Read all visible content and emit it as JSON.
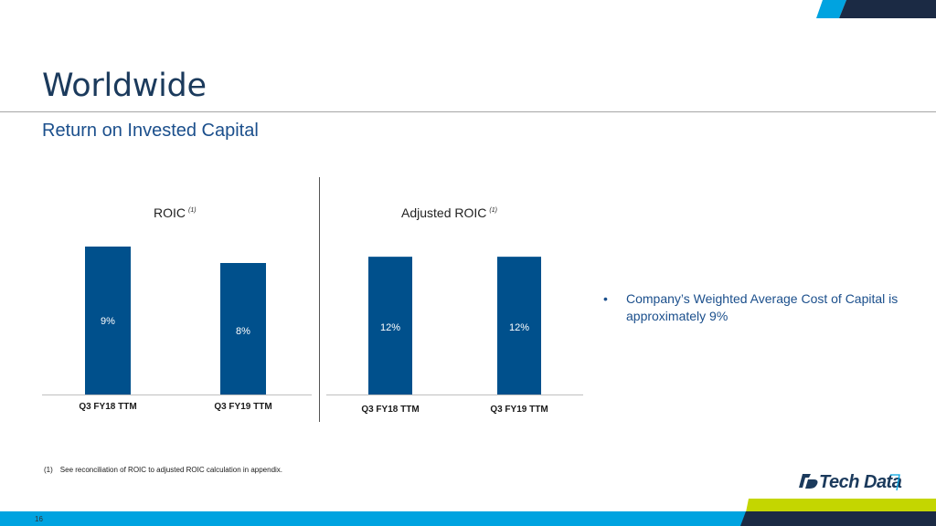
{
  "slide": {
    "title": "Worldwide",
    "subtitle": "Return on Invested Capital",
    "page_number": "16"
  },
  "colors": {
    "bar": "#00508c",
    "title": "#1b3a5c",
    "accent_blue": "#00a3e0",
    "accent_green": "#c4d600",
    "navy": "#1b2a44"
  },
  "chart_data": [
    {
      "type": "bar",
      "title": "ROIC",
      "title_note": "(1)",
      "categories": [
        "Q3 FY18 TTM",
        "Q3 FY19 TTM"
      ],
      "values": [
        9,
        8
      ],
      "labels": [
        "9%",
        "8%"
      ],
      "ylim": [
        0,
        10
      ],
      "grid": false
    },
    {
      "type": "bar",
      "title": "Adjusted ROIC",
      "title_note": "(1)",
      "categories": [
        "Q3 FY18 TTM",
        "Q3 FY19 TTM"
      ],
      "values": [
        12,
        12
      ],
      "labels": [
        "12%",
        "12%"
      ],
      "ylim": [
        0,
        14
      ],
      "grid": false
    }
  ],
  "bullet": {
    "symbol": "•",
    "text": "Company’s Weighted Average Cost of Capital is approximately 9%"
  },
  "footnote": {
    "number": "(1)",
    "text": "See reconciliation of ROIC to adjusted ROIC calculation in appendix."
  },
  "logo": {
    "text": "Tech Data",
    "icon": "tech-data-logo-icon"
  }
}
